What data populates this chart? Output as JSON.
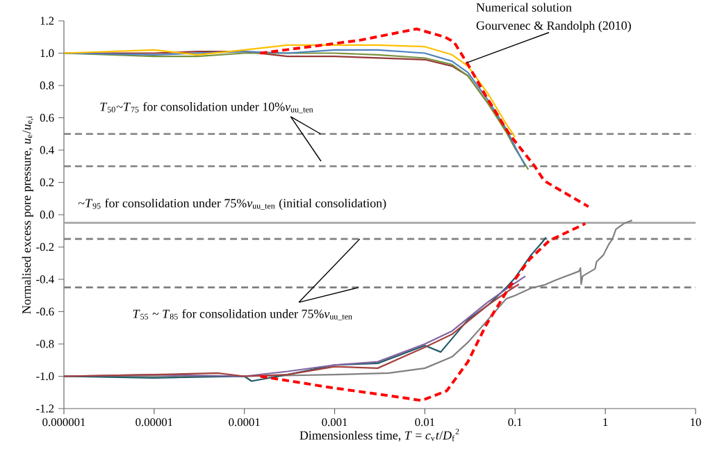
{
  "chart_data": {
    "type": "line",
    "xlabel": "Dimensionless time, *T* = *c*$_{v}$*t*/*D*$_{f}$$^{2}$",
    "ylabel": "Normalised excess pore pressure, *u*$_{e}$/*u*$_{e,i}$",
    "log": "x",
    "grid": false,
    "marker": "none",
    "line_style": "solid",
    "xlim": [
      1e-06,
      10
    ],
    "ylim": [
      -1.2,
      1.2
    ],
    "xticks": [
      {
        "value": 1e-06,
        "label": "0.000001"
      },
      {
        "value": 1e-05,
        "label": "0.00001"
      },
      {
        "value": 0.0001,
        "label": "0.0001"
      },
      {
        "value": 0.001,
        "label": "0.001"
      },
      {
        "value": 0.01,
        "label": "0.01"
      },
      {
        "value": 0.1,
        "label": "0.1"
      },
      {
        "value": 1,
        "label": "1"
      },
      {
        "value": 10,
        "label": "10"
      }
    ],
    "yticks": [
      {
        "value": -1.2,
        "label": "-1.2"
      },
      {
        "value": -1.0,
        "label": "-1.0"
      },
      {
        "value": -0.8,
        "label": "-0.8"
      },
      {
        "value": -0.6,
        "label": "-0.6"
      },
      {
        "value": -0.4,
        "label": "-0.4"
      },
      {
        "value": -0.2,
        "label": "-0.2"
      },
      {
        "value": 0,
        "label": "0.0"
      },
      {
        "value": 0.2,
        "label": "0.2"
      },
      {
        "value": 0.4,
        "label": "0.4"
      },
      {
        "value": 0.6,
        "label": "0.6"
      },
      {
        "value": 0.8,
        "label": "0.8"
      },
      {
        "value": 1.0,
        "label": "1.0"
      },
      {
        "value": 1.2,
        "label": "1.2"
      }
    ],
    "series": [
      {
        "color": "#953735",
        "x": [
          1e-06,
          1e-05,
          3e-05,
          0.0001,
          0.0003,
          0.001,
          0.003,
          0.01,
          0.02,
          0.03,
          0.05,
          0.08,
          0.1
        ],
        "values": [
          1.0,
          1.0,
          1.01,
          1.01,
          0.98,
          0.98,
          0.97,
          0.96,
          0.92,
          0.86,
          0.69,
          0.52,
          0.42
        ]
      },
      {
        "color": "#77933c",
        "x": [
          1e-06,
          1e-05,
          3e-05,
          0.0001,
          0.0003,
          0.001,
          0.003,
          0.01,
          0.02,
          0.03,
          0.05,
          0.08,
          0.1,
          0.14
        ],
        "values": [
          1.0,
          0.98,
          0.98,
          1.0,
          1.0,
          1.0,
          0.99,
          0.97,
          0.93,
          0.86,
          0.69,
          0.51,
          0.41,
          0.28
        ]
      },
      {
        "color": "#4f81bd",
        "x": [
          1e-06,
          1e-05,
          3e-05,
          0.0001,
          0.0003,
          0.001,
          0.003,
          0.01,
          0.02,
          0.03,
          0.05,
          0.08,
          0.1,
          0.13
        ],
        "values": [
          1.0,
          0.99,
          null,
          1.01,
          1.0,
          1.02,
          1.02,
          1.0,
          0.95,
          0.88,
          0.71,
          0.53,
          0.42,
          0.3
        ]
      },
      {
        "color": "#ffc000",
        "x": [
          1e-06,
          1e-05,
          3e-05,
          0.0001,
          0.0003,
          0.001,
          0.003,
          0.01,
          0.02,
          0.03,
          0.05,
          0.08,
          0.1
        ],
        "values": [
          1.0,
          1.02,
          0.99,
          1.02,
          1.05,
          1.05,
          1.05,
          1.04,
          0.99,
          0.92,
          0.75,
          0.56,
          0.48
        ]
      },
      {
        "color": "#808080",
        "x": [
          1e-06,
          0.0001,
          0.001,
          0.004,
          0.01,
          0.02,
          0.03,
          0.05,
          0.08,
          0.1,
          0.15,
          0.21,
          0.28,
          0.51,
          0.53,
          0.54,
          0.56,
          0.77,
          0.8,
          0.95,
          1.1,
          1.2,
          1.31,
          1.6,
          1.98
        ],
        "values": [
          -1.0,
          -1.0,
          -0.99,
          -0.98,
          -0.95,
          -0.88,
          -0.79,
          -0.65,
          -0.52,
          -0.5,
          -0.455,
          -0.435,
          -0.405,
          -0.35,
          -0.33,
          -0.43,
          -0.38,
          -0.335,
          -0.29,
          -0.25,
          -0.18,
          -0.15,
          -0.09,
          -0.055,
          -0.035
        ]
      },
      {
        "color": "#215968",
        "x": [
          1e-06,
          1e-05,
          0.0001,
          0.00012,
          0.0003,
          0.001,
          0.003,
          0.01,
          0.015,
          0.03,
          0.05,
          0.08,
          0.1,
          0.15,
          0.2,
          0.22
        ],
        "values": [
          -1.0,
          -1.01,
          -1.0,
          -1.03,
          -0.99,
          -0.93,
          -0.92,
          -0.81,
          -0.85,
          -0.65,
          -0.56,
          -0.45,
          -0.39,
          -0.25,
          -0.17,
          -0.14
        ]
      },
      {
        "color": "#8064a2",
        "x": [
          1e-06,
          1e-05,
          0.0001,
          0.0003,
          0.001,
          0.003,
          0.01,
          0.02,
          0.03,
          0.05,
          0.08,
          0.13
        ],
        "values": [
          -1.0,
          -0.99,
          -1.0,
          -0.97,
          -0.93,
          -0.91,
          -0.8,
          -0.72,
          -0.64,
          -0.54,
          -0.46,
          -0.38
        ]
      },
      {
        "color": "#a5423f",
        "x": [
          1e-06,
          1e-05,
          5e-05,
          0.0001,
          0.0003,
          0.001,
          0.003,
          0.01,
          0.02,
          0.03,
          0.05,
          0.08,
          0.11
        ],
        "values": [
          -1.0,
          -0.99,
          -0.98,
          -1.0,
          -0.99,
          -0.94,
          -0.95,
          -0.82,
          -0.74,
          -0.66,
          -0.56,
          -0.48,
          -0.43
        ]
      },
      {
        "color": "#ff0000",
        "line_style": "dashed",
        "x": [
          0.00015,
          0.0019,
          0.0081,
          0.0166,
          0.021,
          0.03,
          0.048,
          0.086,
          0.165,
          0.21,
          0.65
        ],
        "values": [
          1.0,
          1.08,
          1.15,
          1.1,
          1.07,
          0.93,
          0.73,
          0.5,
          0.3,
          0.21,
          0.05
        ]
      },
      {
        "color": "#ff0000",
        "line_style": "dashed",
        "x": [
          0.00015,
          0.00091,
          0.004,
          0.0092,
          0.0175,
          0.03,
          0.048,
          0.086,
          0.145,
          0.24,
          0.6
        ],
        "values": [
          -1.0,
          -1.07,
          -1.12,
          -1.15,
          -1.09,
          -0.91,
          -0.68,
          -0.45,
          -0.275,
          -0.16,
          -0.055
        ]
      }
    ],
    "ref_lines": [
      {
        "axis": "y",
        "value": 0.5,
        "color": "#808080",
        "line_style": "dashed"
      },
      {
        "axis": "y",
        "value": 0.3,
        "color": "#808080",
        "line_style": "dashed"
      },
      {
        "axis": "y",
        "value": -0.05,
        "color": "#a6a6a6",
        "line_style": "solid"
      },
      {
        "axis": "y",
        "value": -0.15,
        "color": "#808080",
        "line_style": "dashed"
      },
      {
        "axis": "y",
        "value": -0.45,
        "color": "#808080",
        "line_style": "dashed"
      }
    ],
    "annotations": [
      "Numerical solution",
      {
        "text": "Gourvenec & Randolph (2010)",
        "x": 0.029,
        "y": 0.94
      },
      {
        "text": "*T*$_{50}$~*T*$_{75}$ for consolidation under 10%*v*$_{uu_ten}$",
        "x": 0.0007,
        "y": 0.5
      },
      "~*T*$_{95}$ for consolidation under 75%*v*$_{uu_ten}$ (initial consolidation)",
      {
        "text": "*T*$_{55}$ ~ *T*$_{85}$ for consolidation under 75%*v*$_{uu_ten}$",
        "x": 0.0019,
        "y": -0.15
      }
    ]
  }
}
